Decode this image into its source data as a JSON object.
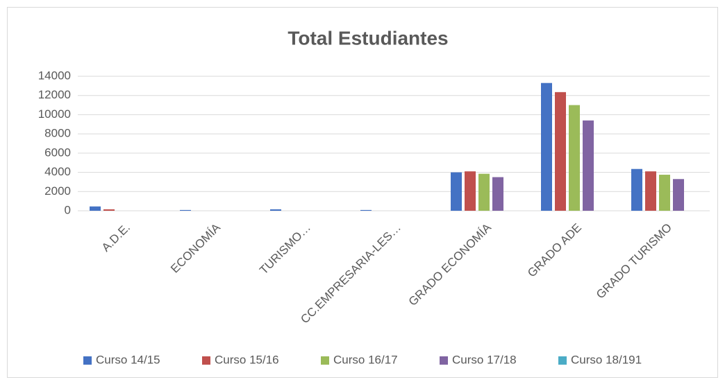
{
  "chart_data": {
    "type": "bar",
    "title": "Total Estudiantes",
    "categories": [
      "A.D.E.",
      "ECONOMÍA",
      "TURISMO…",
      "CC.EMPRESARIA-LES…",
      "GRADO ECONOMÍA",
      "GRADO ADE",
      "GRADO TURISMO"
    ],
    "series": [
      {
        "name": "Curso 14/15",
        "color": "#4472c4",
        "values": [
          450,
          80,
          150,
          80,
          4000,
          13300,
          4350
        ]
      },
      {
        "name": "Curso 15/16",
        "color": "#c0504d",
        "values": [
          150,
          0,
          0,
          0,
          4100,
          12350,
          4100
        ]
      },
      {
        "name": "Curso 16/17",
        "color": "#9bbb59",
        "values": [
          0,
          0,
          0,
          0,
          3850,
          11000,
          3750
        ]
      },
      {
        "name": "Curso 17/18",
        "color": "#8064a2",
        "values": [
          0,
          0,
          0,
          0,
          3500,
          9400,
          3300
        ]
      },
      {
        "name": "Curso 18/191",
        "color": "#4bacc6",
        "values": [
          0,
          0,
          0,
          0,
          0,
          0,
          0
        ]
      }
    ],
    "ylim": [
      0,
      14000
    ],
    "yticks": [
      0,
      2000,
      4000,
      6000,
      8000,
      10000,
      12000,
      14000
    ],
    "grid": true,
    "legend": "bottom"
  }
}
